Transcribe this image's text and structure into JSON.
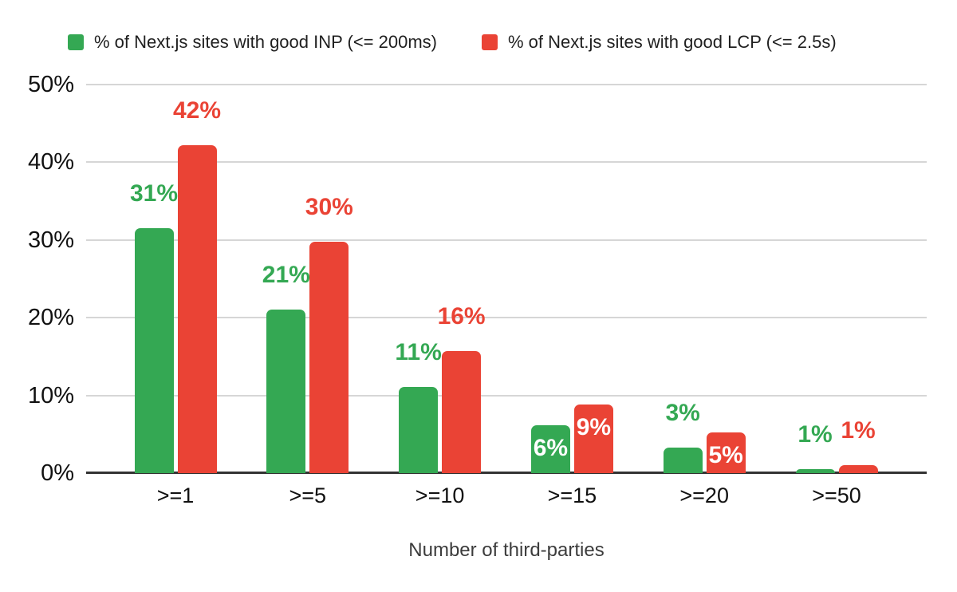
{
  "chart_data": {
    "type": "bar",
    "title": "",
    "xlabel": "Number of third-parties",
    "ylabel": "",
    "categories": [
      ">=1",
      ">=5",
      ">=10",
      ">=15",
      ">=20",
      ">=50"
    ],
    "series": [
      {
        "name": "% of Next.js sites with good INP (<= 200ms)",
        "color": "#34a853",
        "values": [
          31,
          21,
          11,
          6,
          3,
          1
        ],
        "labels": [
          "31%",
          "21%",
          "11%",
          "6%",
          "3%",
          "1%"
        ],
        "render_heights_pct": [
          31.5,
          21.0,
          11.1,
          6.2,
          3.3,
          0.5
        ],
        "label_placement": [
          "above",
          "above",
          "above",
          "inside",
          "above",
          "above"
        ]
      },
      {
        "name": "% of Next.js sites with good LCP (<= 2.5s)",
        "color": "#ea4335",
        "values": [
          42,
          30,
          16,
          9,
          5,
          1
        ],
        "labels": [
          "42%",
          "30%",
          "16%",
          "9%",
          "5%",
          "1%"
        ],
        "render_heights_pct": [
          42.2,
          29.8,
          15.7,
          8.8,
          5.2,
          1.0
        ],
        "label_placement": [
          "above",
          "above",
          "above",
          "inside",
          "inside",
          "above"
        ]
      }
    ],
    "yticks": [
      "50%",
      "40%",
      "30%",
      "20%",
      "10%",
      "0%"
    ],
    "ytick_values": [
      50,
      40,
      30,
      20,
      10,
      0
    ],
    "ylim": [
      0,
      50
    ],
    "grid": true,
    "legend_position": "top",
    "colors": {
      "background": "#ffffff",
      "gridline": "#d6d6d6",
      "axis_line": "#333333",
      "tick_text": "#111111",
      "inside_label_text": "#ffffff"
    }
  }
}
